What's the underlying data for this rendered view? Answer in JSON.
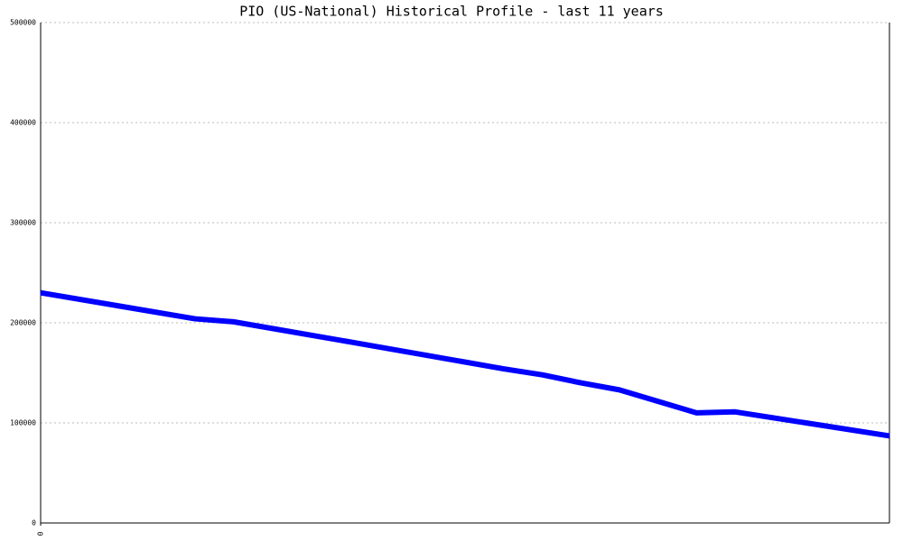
{
  "chart_data": {
    "type": "line",
    "title": "PIO (US-National) Historical Profile - last 11 years",
    "x": [
      0,
      12,
      24,
      30,
      48,
      72,
      78,
      84,
      90,
      102,
      108,
      132
    ],
    "series": [
      {
        "color": "#0000ff",
        "values": [
          230000,
          217000,
          204000,
          201000,
          181000,
          154000,
          148000,
          140000,
          133000,
          110000,
          111000,
          87000
        ]
      }
    ],
    "xlim": [
      0,
      132
    ],
    "xticks": [
      0
    ],
    "ylim": [
      0,
      500000
    ],
    "yticks": [
      0,
      100000,
      200000,
      300000,
      400000,
      500000
    ],
    "grid": true
  }
}
